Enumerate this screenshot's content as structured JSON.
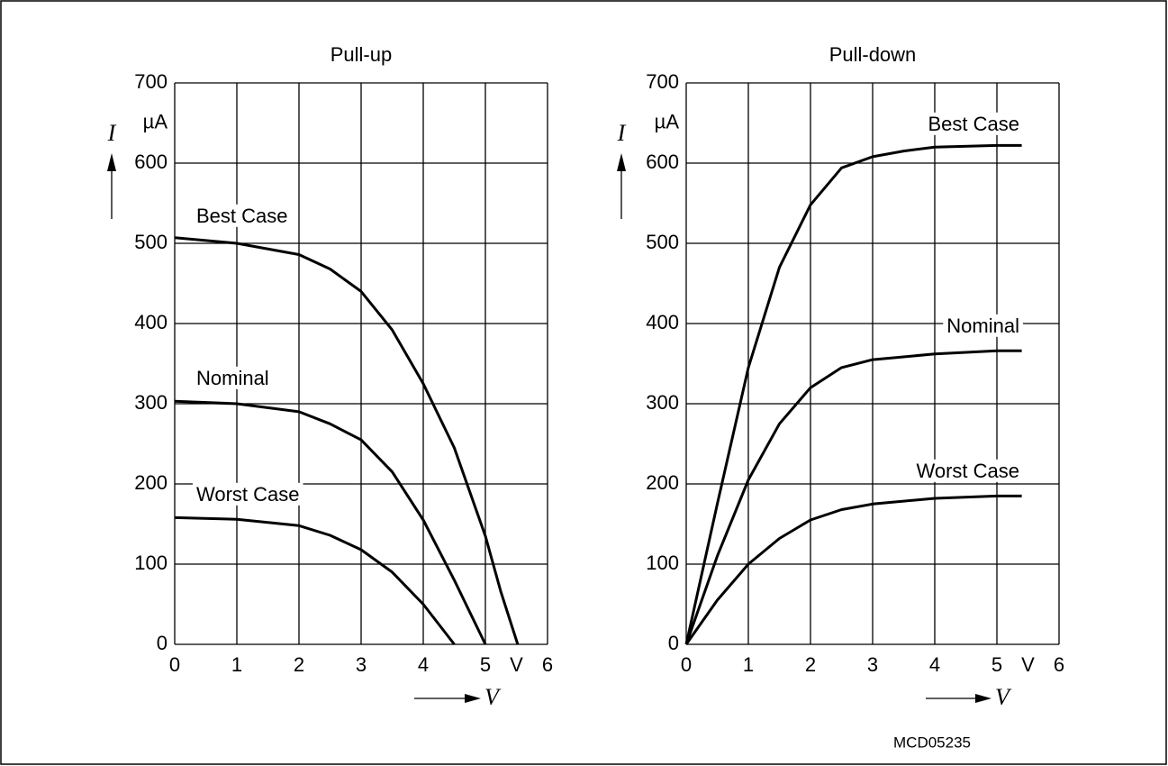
{
  "code": "MCD05235",
  "chart_data": [
    {
      "type": "line",
      "title": "Pull-up",
      "x_label": "V",
      "y_label": "I",
      "x_unit": "V",
      "y_unit": "µA",
      "xlim": [
        0,
        6
      ],
      "ylim": [
        0,
        700
      ],
      "xticks": [
        0,
        1,
        2,
        3,
        4,
        5,
        6
      ],
      "yticks": [
        0,
        100,
        200,
        300,
        400,
        500,
        600,
        700
      ],
      "grid": true,
      "series": [
        {
          "name": "Best Case",
          "color": "#000000",
          "x": [
            0,
            1,
            2,
            2.5,
            3,
            3.5,
            4,
            4.5,
            5,
            5.25,
            5.52
          ],
          "values": [
            507,
            500,
            486,
            468,
            440,
            392,
            325,
            245,
            135,
            65,
            0
          ]
        },
        {
          "name": "Nominal",
          "color": "#000000",
          "x": [
            0,
            1,
            2,
            2.5,
            3,
            3.5,
            4,
            4.5,
            5
          ],
          "values": [
            303,
            300,
            290,
            275,
            255,
            215,
            155,
            80,
            0
          ]
        },
        {
          "name": "Worst Case",
          "color": "#000000",
          "x": [
            0,
            1,
            2,
            2.5,
            3,
            3.5,
            4,
            4.5
          ],
          "values": [
            158,
            156,
            148,
            136,
            118,
            90,
            50,
            0
          ]
        }
      ]
    },
    {
      "type": "line",
      "title": "Pull-down",
      "x_label": "V",
      "y_label": "I",
      "x_unit": "V",
      "y_unit": "µA",
      "xlim": [
        0,
        6
      ],
      "ylim": [
        0,
        700
      ],
      "xticks": [
        0,
        1,
        2,
        3,
        4,
        5,
        6
      ],
      "yticks": [
        0,
        100,
        200,
        300,
        400,
        500,
        600,
        700
      ],
      "grid": true,
      "series": [
        {
          "name": "Best Case",
          "color": "#000000",
          "x": [
            0,
            0.5,
            1,
            1.5,
            2,
            2.5,
            3,
            3.5,
            4,
            5,
            5.4
          ],
          "values": [
            0,
            175,
            345,
            470,
            548,
            594,
            608,
            615,
            620,
            622,
            622
          ]
        },
        {
          "name": "Nominal",
          "color": "#000000",
          "x": [
            0,
            0.5,
            1,
            1.5,
            2,
            2.5,
            3,
            4,
            5,
            5.4
          ],
          "values": [
            0,
            110,
            205,
            275,
            320,
            345,
            355,
            362,
            366,
            366
          ]
        },
        {
          "name": "Worst Case",
          "color": "#000000",
          "x": [
            0,
            0.5,
            1,
            1.5,
            2,
            2.5,
            3,
            4,
            5,
            5.4
          ],
          "values": [
            0,
            55,
            100,
            132,
            155,
            168,
            175,
            182,
            185,
            185
          ]
        }
      ]
    }
  ]
}
